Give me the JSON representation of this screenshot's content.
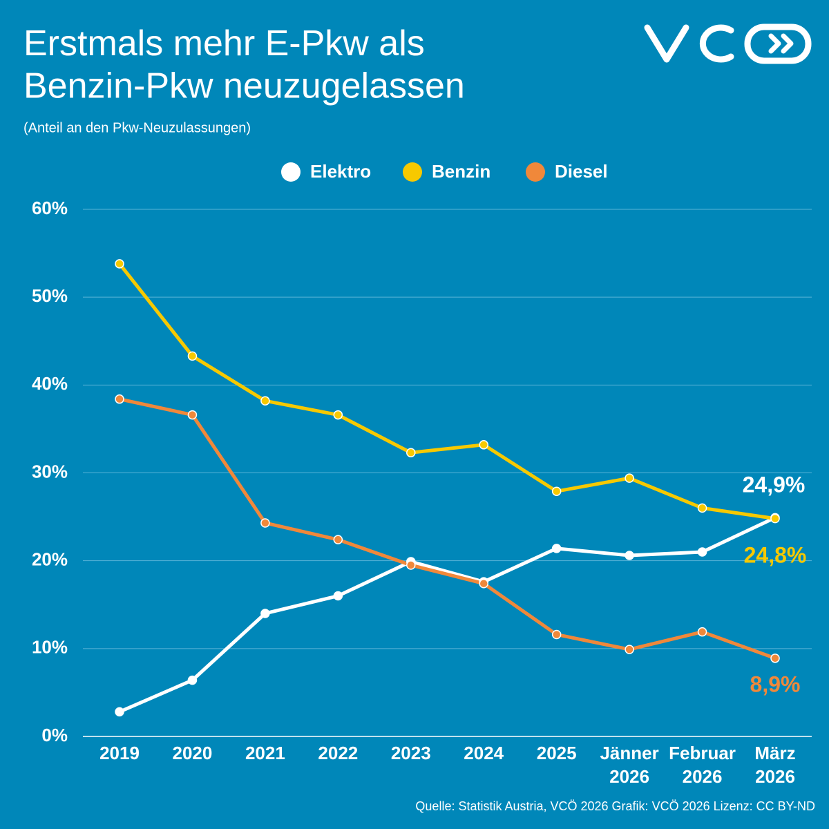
{
  "chart_data": {
    "type": "line",
    "title": "Erstmals mehr E-Pkw als\nBenzin-Pkw neuzugelassen",
    "subtitle": "(Anteil an den Pkw-Neuzulassungen)",
    "source": "Quelle: Statistik Austria, VCÖ 2026 Grafik: VCÖ 2026 Lizenz: CC BY-ND",
    "categories": [
      "2019",
      "2020",
      "2021",
      "2022",
      "2023",
      "2024",
      "2025",
      "Jänner\n2026",
      "Februar\n2026",
      "März\n2026"
    ],
    "series": [
      {
        "name": "Elektro",
        "color": "#ffffff",
        "values": [
          2.8,
          6.4,
          14.0,
          16.0,
          19.9,
          17.6,
          21.4,
          20.6,
          21.0,
          24.9
        ],
        "value_labels": [
          null,
          null,
          null,
          null,
          null,
          null,
          null,
          null,
          null,
          "24,9%"
        ]
      },
      {
        "name": "Benzin",
        "color": "#f7c900",
        "values": [
          53.8,
          43.3,
          38.2,
          36.6,
          32.3,
          33.2,
          27.9,
          29.4,
          26.0,
          24.8
        ],
        "value_labels": [
          null,
          null,
          null,
          null,
          null,
          null,
          null,
          null,
          null,
          "24,8%"
        ]
      },
      {
        "name": "Diesel",
        "color": "#f0883a",
        "values": [
          38.4,
          36.6,
          24.3,
          22.4,
          19.5,
          17.4,
          11.6,
          9.9,
          11.9,
          8.9
        ],
        "value_labels": [
          null,
          null,
          null,
          null,
          null,
          null,
          null,
          null,
          null,
          "8,9%"
        ]
      }
    ],
    "ylim": [
      0,
      60
    ],
    "yticks": [
      {
        "value": 0,
        "label": "0%"
      },
      {
        "value": 10,
        "label": "10%"
      },
      {
        "value": 20,
        "label": "20%"
      },
      {
        "value": 30,
        "label": "30%"
      },
      {
        "value": 40,
        "label": "40%"
      },
      {
        "value": 50,
        "label": "50%"
      },
      {
        "value": 60,
        "label": "60%"
      }
    ],
    "grid": true,
    "legend": "top"
  }
}
